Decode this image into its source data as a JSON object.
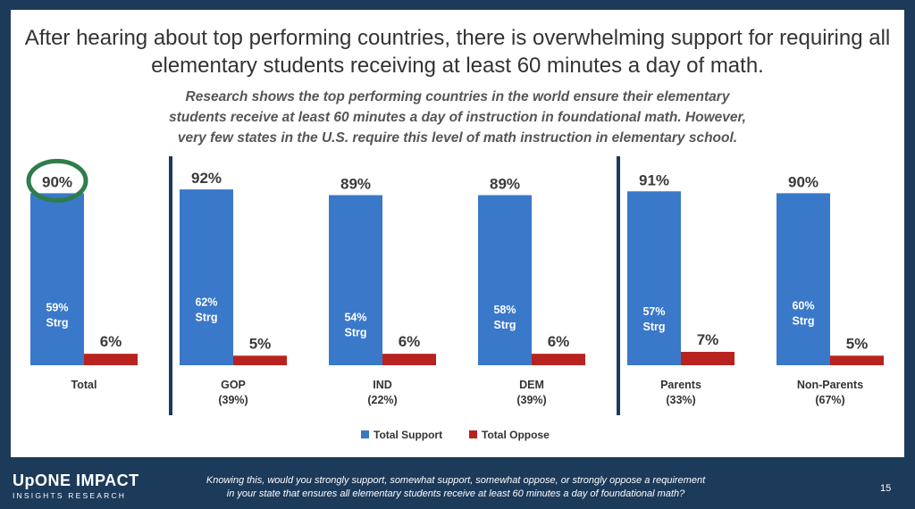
{
  "slide": {
    "title": "After hearing about top performing countries, there is overwhelming support for requiring all elementary students receiving at least 60 minutes a day of math.",
    "subtitle_lines": [
      "Research shows the top performing countries in the world ensure their elementary",
      "students receive at least 60 minutes a day of instruction in foundational math. However,",
      "very few states in the U.S. require this level of math instruction in elementary school."
    ],
    "footer_question_lines": [
      "Knowing this, would you strongly support, somewhat support, somewhat oppose, or strongly oppose a requirement",
      "in your state that ensures all elementary students receive at least 60 minutes a day of foundational math?"
    ],
    "page_number": "15",
    "logo": {
      "main": "UpONE IMPACT",
      "sub": "INSIGHTS RESEARCH"
    }
  },
  "chart_data": {
    "type": "bar",
    "ylim": [
      0,
      100
    ],
    "categories": [
      {
        "label": "Total",
        "sub": ""
      },
      {
        "label": "GOP",
        "sub": "(39%)"
      },
      {
        "label": "IND",
        "sub": "(22%)"
      },
      {
        "label": "DEM",
        "sub": "(39%)"
      },
      {
        "label": "Parents",
        "sub": "(33%)"
      },
      {
        "label": "Non-Parents",
        "sub": "(67%)"
      }
    ],
    "series": [
      {
        "name": "Total Support",
        "color": "#3a78c9",
        "values": [
          90,
          92,
          89,
          89,
          91,
          90
        ],
        "labels": [
          "90%",
          "92%",
          "89%",
          "89%",
          "91%",
          "90%"
        ],
        "inner_labels": [
          [
            "59%",
            "Strg"
          ],
          [
            "62%",
            "Strg"
          ],
          [
            "54%",
            "Strg"
          ],
          [
            "58%",
            "Strg"
          ],
          [
            "57%",
            "Strg"
          ],
          [
            "60%",
            "Strg"
          ]
        ],
        "strong_values": [
          59,
          62,
          54,
          58,
          57,
          60
        ]
      },
      {
        "name": "Total Oppose",
        "color": "#b8231f",
        "values": [
          6,
          5,
          6,
          6,
          7,
          5
        ],
        "labels": [
          "6%",
          "5%",
          "6%",
          "6%",
          "7%",
          "5%"
        ]
      }
    ],
    "highlight": {
      "category_index": 0,
      "shape": "circle",
      "color": "#2e7d4a"
    },
    "separators_after": [
      0,
      3
    ],
    "legend_position": "bottom-center",
    "grid": false
  }
}
